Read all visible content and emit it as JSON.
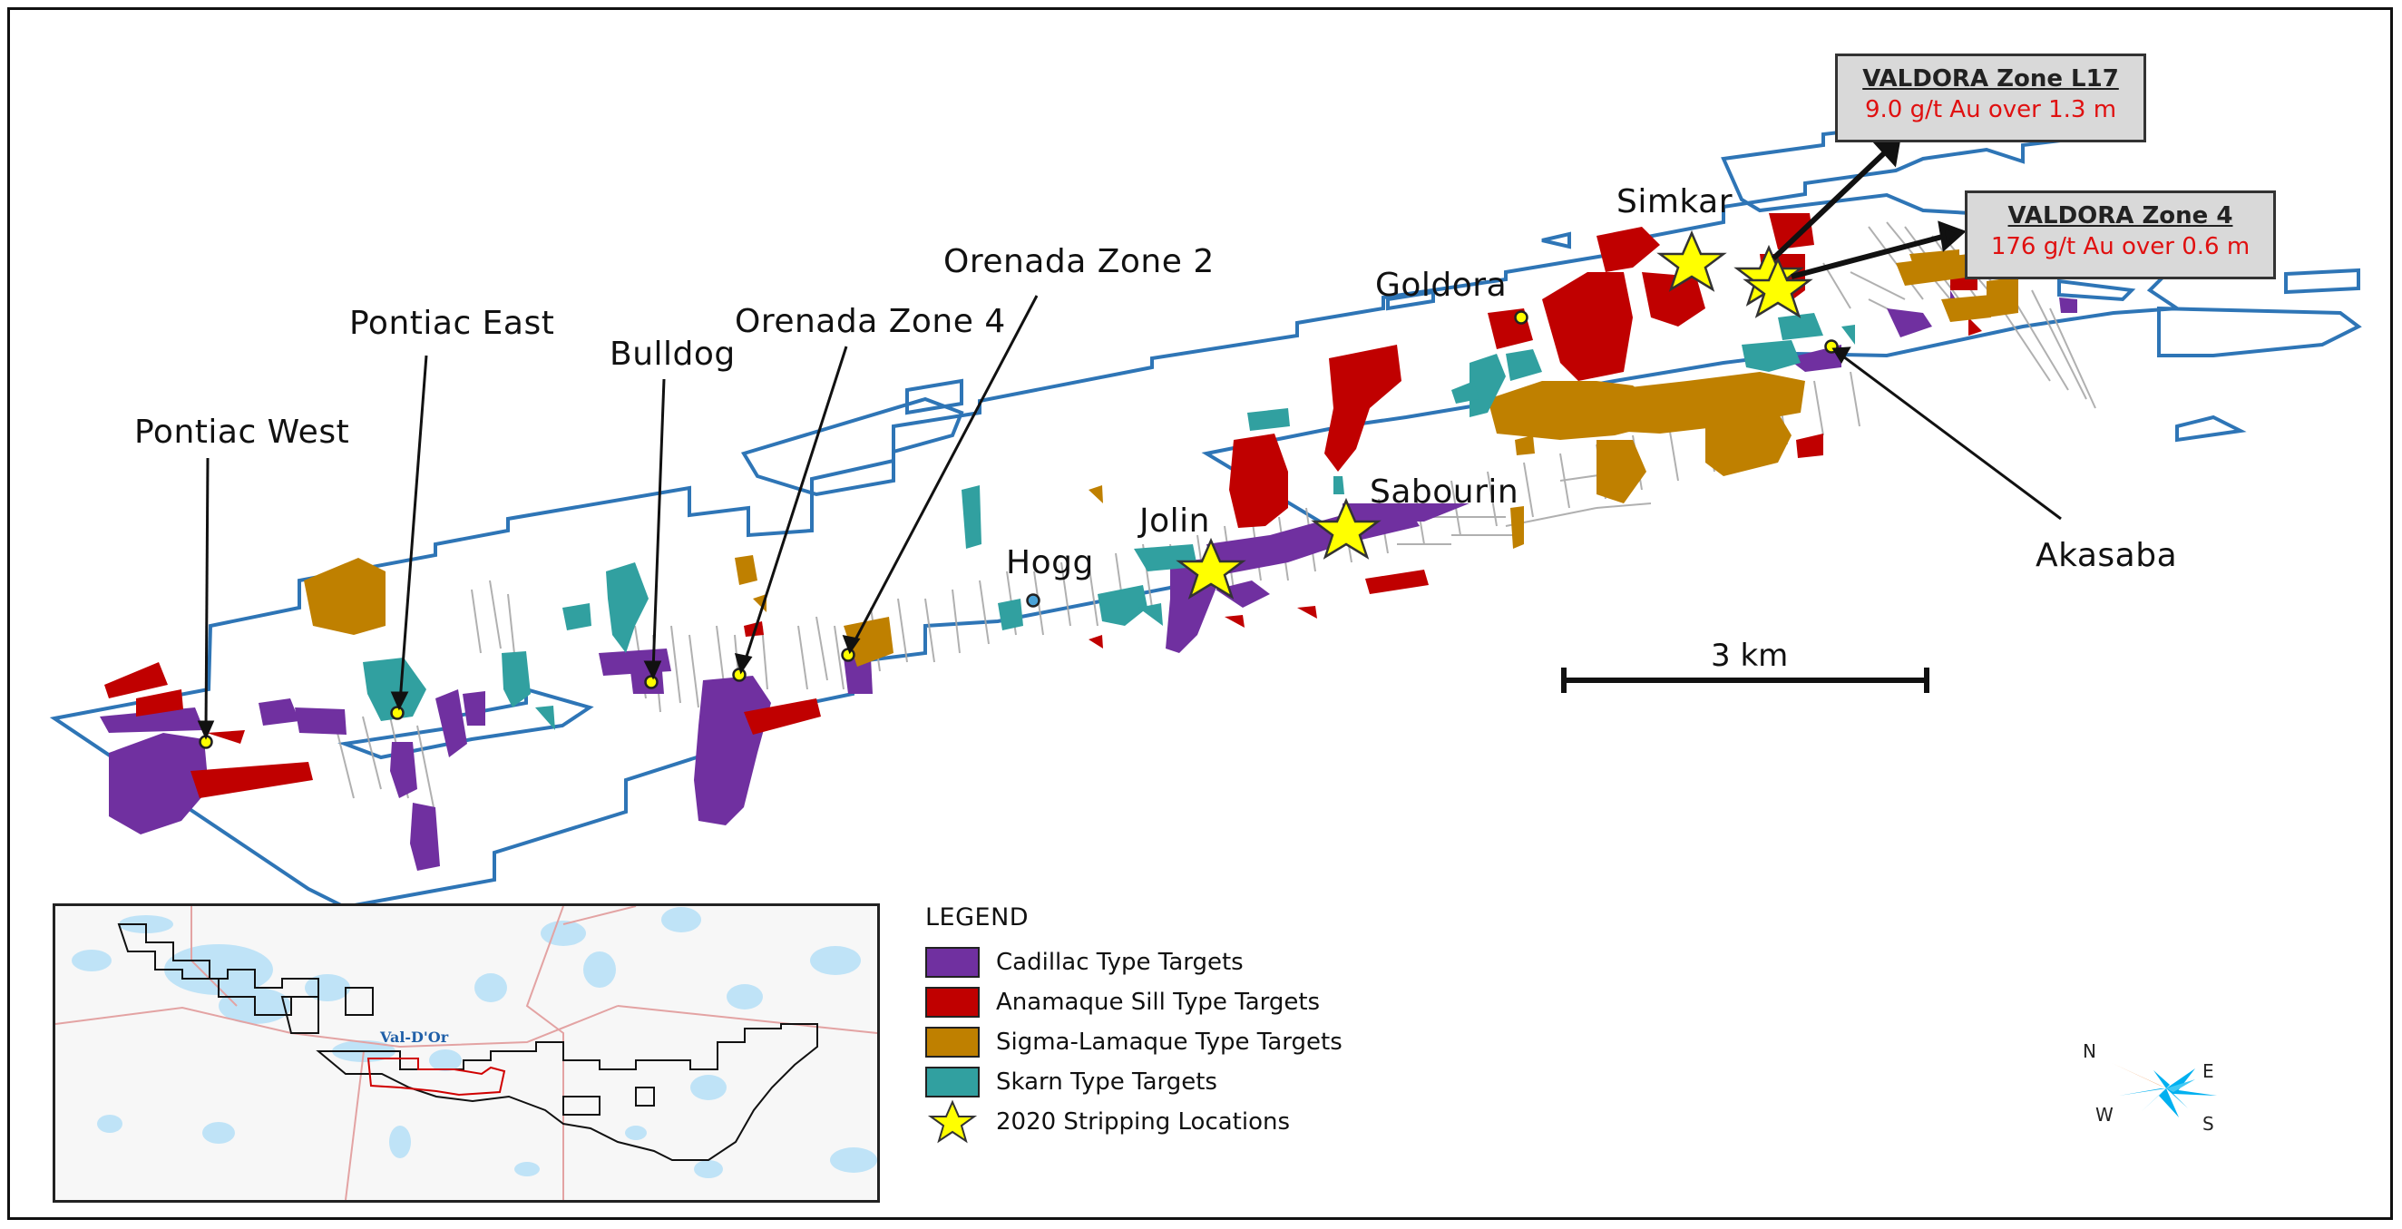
{
  "map": {
    "site_labels": {
      "pontiac_west": "Pontiac West",
      "pontiac_east": "Pontiac East",
      "bulldog": "Bulldog",
      "orenada_zone_4": "Orenada Zone 4",
      "orenada_zone_2": "Orenada Zone 2",
      "hogg": "Hogg",
      "jolin": "Jolin",
      "sabourin": "Sabourin",
      "goldora": "Goldora",
      "simkar": "Simkar",
      "akasaba": "Akasaba"
    },
    "callouts": [
      {
        "title": "VALDORA Zone L17",
        "value": "9.0 g/t Au over 1.3 m"
      },
      {
        "title": "VALDORA Zone 4",
        "value": "176 g/t Au over 0.6 m"
      }
    ],
    "scale_bar": {
      "label": "3 km"
    },
    "colors": {
      "cadillac": "#7030a0",
      "anamaque": "#c00000",
      "sigma_lamaque": "#bf8000",
      "skarn": "#31a0a0",
      "stripping": "#ffff00",
      "property_outline": "#2e75b6",
      "callout_value": "#e01010"
    }
  },
  "legend": {
    "title": "LEGEND",
    "items": [
      {
        "label": "Cadillac Type Targets",
        "color": "#7030a0",
        "shape": "square"
      },
      {
        "label": "Anamaque Sill Type Targets",
        "color": "#c00000",
        "shape": "square"
      },
      {
        "label": "Sigma-Lamaque Type Targets",
        "color": "#bf8000",
        "shape": "square"
      },
      {
        "label": "Skarn Type Targets",
        "color": "#31a0a0",
        "shape": "square"
      },
      {
        "label": "2020 Stripping Locations",
        "color": "#ffff00",
        "shape": "star"
      }
    ]
  },
  "inset": {
    "town_label": "Val-D'Or"
  },
  "compass": {
    "n": "N",
    "e": "E",
    "s": "S",
    "w": "W"
  }
}
